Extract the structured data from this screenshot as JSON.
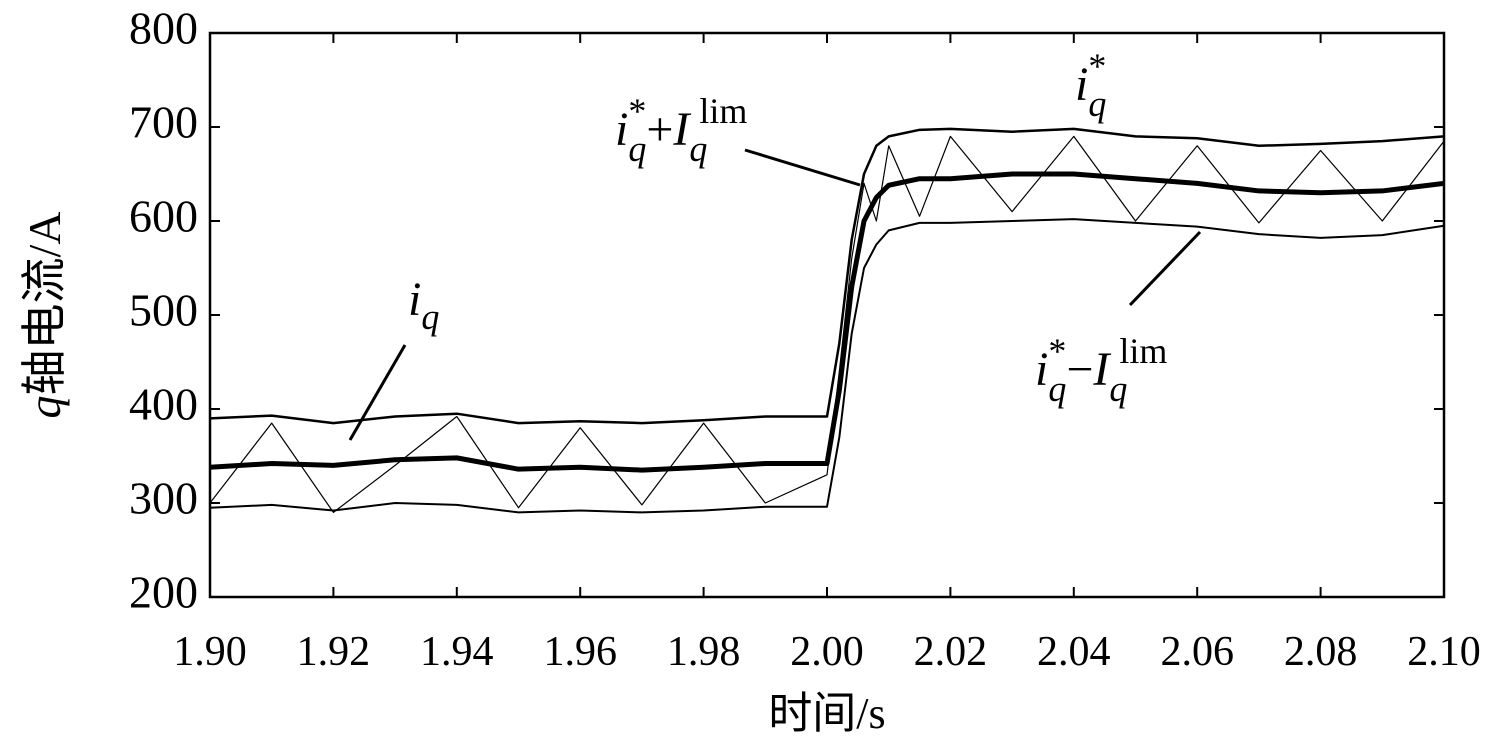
{
  "chart_data": {
    "type": "line",
    "x_label": "时间/s",
    "y_label_parts": [
      "q",
      "轴电流/A"
    ],
    "x": [
      1.9,
      1.91,
      1.92,
      1.93,
      1.94,
      1.95,
      1.96,
      1.97,
      1.98,
      1.99,
      2.0,
      2.002,
      2.004,
      2.006,
      2.008,
      2.01,
      2.015,
      2.02,
      2.03,
      2.04,
      2.05,
      2.06,
      2.07,
      2.08,
      2.09,
      2.1
    ],
    "xlim": [
      1.9,
      2.1
    ],
    "xticks": [
      {
        "value": 1.9,
        "label": "1.90"
      },
      {
        "value": 1.92,
        "label": "1.92"
      },
      {
        "value": 1.94,
        "label": "1.94"
      },
      {
        "value": 1.96,
        "label": "1.96"
      },
      {
        "value": 1.98,
        "label": "1.98"
      },
      {
        "value": 2.0,
        "label": "2.00"
      },
      {
        "value": 2.02,
        "label": "2.02"
      },
      {
        "value": 2.04,
        "label": "2.04"
      },
      {
        "value": 2.06,
        "label": "2.06"
      },
      {
        "value": 2.08,
        "label": "2.08"
      },
      {
        "value": 2.1,
        "label": "2.10"
      }
    ],
    "ylim": [
      200,
      800
    ],
    "yticks": [
      200,
      300,
      400,
      500,
      600,
      700,
      800
    ],
    "grid": false,
    "series": [
      {
        "color": "#000000",
        "width": 2.5,
        "values": [
          390,
          393,
          385,
          392,
          395,
          385,
          387,
          385,
          388,
          392,
          392,
          470,
          580,
          650,
          680,
          690,
          697,
          698,
          695,
          698,
          690,
          688,
          680,
          682,
          685,
          690
        ]
      },
      {
        "color": "#000000",
        "width": 5,
        "values": [
          338,
          342,
          340,
          346,
          348,
          336,
          338,
          335,
          338,
          342,
          342,
          420,
          530,
          600,
          625,
          638,
          645,
          645,
          650,
          650,
          645,
          640,
          632,
          630,
          632,
          640
        ]
      },
      {
        "color": "#000000",
        "width": 2,
        "values": [
          295,
          298,
          292,
          300,
          298,
          290,
          292,
          290,
          292,
          296,
          296,
          370,
          480,
          550,
          575,
          590,
          598,
          598,
          600,
          602,
          598,
          594,
          586,
          582,
          585,
          595
        ]
      },
      {
        "color": "#000000",
        "width": 1.2,
        "values": [
          300,
          385,
          290,
          340,
          392,
          295,
          380,
          298,
          385,
          300,
          330,
          440,
          560,
          640,
          600,
          680,
          605,
          690,
          610,
          690,
          600,
          680,
          598,
          675,
          600,
          685
        ]
      }
    ],
    "annotations": [
      {
        "parts": [
          "i",
          "q"
        ]
      },
      {
        "parts": [
          "i",
          "q",
          "*",
          "+",
          "I",
          "q",
          "lim"
        ]
      },
      {
        "parts": [
          "i",
          "q",
          "*"
        ]
      },
      {
        "parts": [
          "i",
          "q",
          "*",
          "−",
          "I",
          "q",
          "lim"
        ]
      }
    ]
  }
}
